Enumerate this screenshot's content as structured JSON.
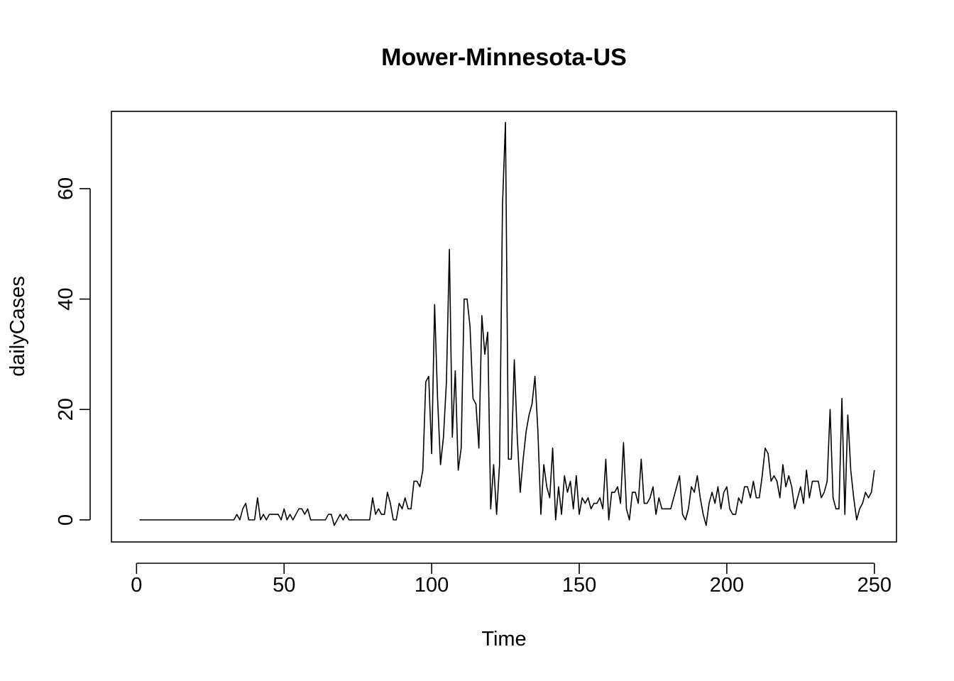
{
  "chart_data": {
    "type": "line",
    "title": "Mower-Minnesota-US",
    "xlabel": "Time",
    "ylabel": "dailyCases",
    "xlim": [
      -8.5,
      257.5
    ],
    "ylim": [
      -4,
      74
    ],
    "x_ticks": [
      0,
      50,
      100,
      150,
      200,
      250
    ],
    "y_ticks": [
      0,
      20,
      40,
      60
    ],
    "x_start": 1,
    "grid": false,
    "legend": "none",
    "color": "#000000",
    "series": [
      {
        "values": [
          0,
          0,
          0,
          0,
          0,
          0,
          0,
          0,
          0,
          0,
          0,
          0,
          0,
          0,
          0,
          0,
          0,
          0,
          0,
          0,
          0,
          0,
          0,
          0,
          0,
          0,
          0,
          0,
          0,
          0,
          0,
          0,
          0,
          1,
          0,
          2,
          3,
          0,
          0,
          0,
          4,
          0,
          1,
          0,
          1,
          1,
          1,
          1,
          0,
          2,
          0,
          1,
          0,
          1,
          2,
          2,
          1,
          2,
          0,
          0,
          0,
          0,
          0,
          0,
          1,
          1,
          -1,
          0,
          1,
          0,
          1,
          0,
          0,
          0,
          0,
          0,
          0,
          0,
          0,
          4,
          1,
          2,
          1,
          1,
          5,
          3,
          0,
          0,
          3,
          2,
          4,
          2,
          2,
          7,
          7,
          6,
          9,
          25,
          26,
          12,
          39,
          22,
          10,
          15,
          25,
          49,
          15,
          27,
          9,
          13,
          40,
          40,
          35,
          22,
          21,
          13,
          37,
          30,
          34,
          2,
          10,
          1,
          10,
          57,
          72,
          11,
          11,
          29,
          15,
          5,
          11,
          16,
          19,
          21,
          26,
          16,
          1,
          10,
          6,
          4,
          13,
          0,
          6,
          1,
          8,
          5,
          7,
          2,
          8,
          1,
          4,
          3,
          4,
          2,
          3,
          3,
          4,
          2,
          11,
          0,
          5,
          5,
          6,
          3,
          14,
          2,
          0,
          5,
          5,
          3,
          11,
          3,
          3,
          4,
          6,
          1,
          4,
          2,
          2,
          2,
          2,
          4,
          6,
          8,
          1,
          0,
          2,
          6,
          5,
          8,
          4,
          1,
          -1,
          3,
          5,
          3,
          6,
          2,
          5,
          6,
          2,
          1,
          1,
          4,
          3,
          6,
          6,
          4,
          7,
          4,
          4,
          8,
          13,
          12,
          7,
          8,
          7,
          4,
          10,
          6,
          8,
          6,
          2,
          4,
          6,
          3,
          9,
          4,
          7,
          7,
          7,
          4,
          5,
          7,
          20,
          4,
          2,
          2,
          22,
          1,
          19,
          9,
          4,
          0,
          2,
          3,
          5,
          4,
          5,
          9
        ]
      }
    ]
  }
}
